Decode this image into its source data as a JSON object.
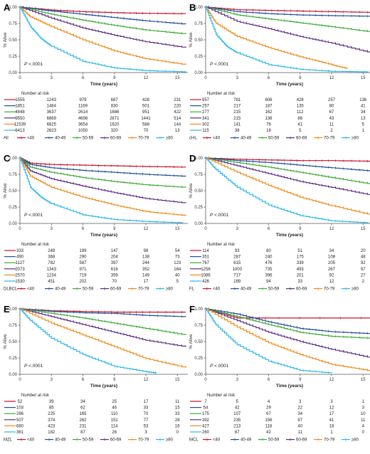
{
  "figure": {
    "time_label": "Time (years)",
    "y_label": "% Alive",
    "risk_title": "Number at risk",
    "p_prefix": "P",
    "p_value": " <.0001",
    "colors": [
      "#c8102e",
      "#1f4e9a",
      "#3aaa35",
      "#5b2a86",
      "#ef8a17",
      "#2ab7e8"
    ]
  },
  "chart_data": [
    {
      "panel": "A",
      "type": "line",
      "disease": "All",
      "x_ticks": [
        0,
        3,
        6,
        9,
        12,
        15
      ],
      "y_ticks": [
        "0.00",
        "0.25",
        "0.50",
        "0.75",
        "1.00"
      ],
      "xlim": [
        0,
        16
      ],
      "ylim": [
        0,
        1
      ],
      "grid": false,
      "legend": "bottom",
      "series": [
        {
          "name": "<40",
          "x": [
            0,
            3,
            6,
            9,
            12,
            15.8
          ],
          "y": [
            1,
            0.955,
            0.93,
            0.915,
            0.905,
            0.9
          ]
        },
        {
          "name": "40-49",
          "x": [
            0,
            3,
            6,
            9,
            12,
            15.8
          ],
          "y": [
            1,
            0.94,
            0.89,
            0.84,
            0.79,
            0.74
          ]
        },
        {
          "name": "50-59",
          "x": [
            0,
            3,
            6,
            9,
            12,
            15.8
          ],
          "y": [
            1,
            0.89,
            0.8,
            0.72,
            0.65,
            0.59
          ]
        },
        {
          "name": "60-69",
          "x": [
            0,
            3,
            6,
            9,
            12,
            15.8
          ],
          "y": [
            1,
            0.83,
            0.68,
            0.57,
            0.47,
            0.38
          ]
        },
        {
          "name": "70-79",
          "x": [
            0,
            1,
            3,
            6,
            9,
            12,
            15.8
          ],
          "y": [
            1,
            0.85,
            0.7,
            0.5,
            0.33,
            0.21,
            0.12
          ]
        },
        {
          "name": "≥80",
          "x": [
            0,
            1,
            2,
            3,
            6,
            9,
            12,
            15.8
          ],
          "y": [
            1,
            0.7,
            0.52,
            0.4,
            0.17,
            0.07,
            0.03,
            0.01
          ]
        }
      ],
      "risk_rows": [
        [
          "1555",
          "1243",
          "979",
          "687",
          "428",
          "231"
        ],
        [
          "1851",
          "1484",
          "1169",
          "830",
          "501",
          "220"
        ],
        [
          "4848",
          "3637",
          "2614",
          "1686",
          "951",
          "422"
        ],
        [
          "9550",
          "6869",
          "4698",
          "2871",
          "1441",
          "514"
        ],
        [
          "11539",
          "6825",
          "3654",
          "1620",
          "588",
          "144"
        ],
        [
          "6413",
          "2623",
          "1050",
          "320",
          "70",
          "13"
        ]
      ]
    },
    {
      "panel": "B",
      "type": "line",
      "disease": "cHL",
      "x_ticks": [
        0,
        3,
        6,
        9,
        12,
        15
      ],
      "y_ticks": [
        "0.00",
        "0.25",
        "0.50",
        "0.75",
        "1.00"
      ],
      "xlim": [
        0,
        16
      ],
      "ylim": [
        0,
        1
      ],
      "grid": false,
      "legend": "bottom",
      "series": [
        {
          "name": "<40",
          "x": [
            0,
            3,
            6,
            9,
            12,
            15.8
          ],
          "y": [
            1,
            0.96,
            0.95,
            0.94,
            0.93,
            0.92
          ]
        },
        {
          "name": "40-49",
          "x": [
            0,
            3,
            6,
            9,
            12,
            15.8
          ],
          "y": [
            1,
            0.93,
            0.9,
            0.88,
            0.87,
            0.86
          ]
        },
        {
          "name": "50-59",
          "x": [
            0,
            3,
            6,
            9,
            12,
            15.8
          ],
          "y": [
            1,
            0.88,
            0.82,
            0.76,
            0.7,
            0.62
          ]
        },
        {
          "name": "60-69",
          "x": [
            0,
            3,
            6,
            9,
            12,
            15.8
          ],
          "y": [
            1,
            0.78,
            0.67,
            0.55,
            0.45,
            0.3
          ]
        },
        {
          "name": "70-79",
          "x": [
            0,
            1,
            3,
            6,
            9,
            12,
            13.5
          ],
          "y": [
            1,
            0.75,
            0.55,
            0.38,
            0.24,
            0.12,
            0.06
          ]
        },
        {
          "name": "≥80",
          "x": [
            0,
            1,
            2,
            3,
            6,
            9,
            12,
            15.5
          ],
          "y": [
            1,
            0.58,
            0.4,
            0.3,
            0.12,
            0.05,
            0.02,
            0.01
          ]
        }
      ],
      "risk_rows": [
        [
          "957",
          "781",
          "606",
          "428",
          "257",
          "136"
        ],
        [
          "257",
          "217",
          "187",
          "135",
          "80",
          "41"
        ],
        [
          "277",
          "215",
          "162",
          "112",
          "67",
          "34"
        ],
        [
          "341",
          "215",
          "138",
          "88",
          "43",
          "13"
        ],
        [
          "302",
          "141",
          "76",
          "41",
          "11",
          "5"
        ],
        [
          "115",
          "38",
          "18",
          "5",
          "2",
          "1"
        ]
      ]
    },
    {
      "panel": "C",
      "type": "line",
      "disease": "DLBCL",
      "x_ticks": [
        0,
        3,
        6,
        9,
        12,
        15
      ],
      "y_ticks": [
        "0.00",
        "0.25",
        "0.50",
        "0.75",
        "1.00"
      ],
      "xlim": [
        0,
        16
      ],
      "ylim": [
        0,
        1
      ],
      "grid": false,
      "legend": "bottom",
      "series": [
        {
          "name": "<40",
          "x": [
            0,
            1,
            3,
            6,
            9,
            12,
            15.8
          ],
          "y": [
            1,
            0.92,
            0.9,
            0.89,
            0.88,
            0.87,
            0.86
          ]
        },
        {
          "name": "40-49",
          "x": [
            0,
            1,
            3,
            6,
            9,
            12,
            15.8
          ],
          "y": [
            1,
            0.9,
            0.85,
            0.81,
            0.78,
            0.75,
            0.72
          ]
        },
        {
          "name": "50-59",
          "x": [
            0,
            1,
            3,
            6,
            9,
            12,
            15.8
          ],
          "y": [
            1,
            0.86,
            0.78,
            0.7,
            0.64,
            0.59,
            0.55
          ]
        },
        {
          "name": "60-69",
          "x": [
            0,
            1,
            3,
            6,
            9,
            12,
            15.8
          ],
          "y": [
            1,
            0.8,
            0.68,
            0.57,
            0.47,
            0.38,
            0.31
          ]
        },
        {
          "name": "70-79",
          "x": [
            0,
            1,
            3,
            6,
            9,
            12,
            15.8
          ],
          "y": [
            1,
            0.72,
            0.55,
            0.4,
            0.28,
            0.18,
            0.12
          ]
        },
        {
          "name": "≥80",
          "x": [
            0,
            1,
            2,
            3,
            6,
            9,
            12,
            15.5
          ],
          "y": [
            1,
            0.55,
            0.4,
            0.3,
            0.13,
            0.06,
            0.03,
            0.01
          ]
        }
      ],
      "risk_rows": [
        [
          "333",
          "249",
          "199",
          "147",
          "98",
          "54"
        ],
        [
          "490",
          "368",
          "290",
          "204",
          "138",
          "73"
        ],
        [
          "1127",
          "782",
          "587",
          "397",
          "244",
          "123"
        ],
        [
          "2073",
          "1343",
          "971",
          "616",
          "352",
          "164"
        ],
        [
          "2570",
          "1234",
          "719",
          "359",
          "149",
          "40"
        ],
        [
          "1530",
          "451",
          "202",
          "70",
          "17",
          "5"
        ]
      ]
    },
    {
      "panel": "D",
      "type": "line",
      "disease": "FL",
      "x_ticks": [
        0,
        3,
        6,
        9,
        12,
        15
      ],
      "y_ticks": [
        "0.00",
        "0.25",
        "0.50",
        "0.75",
        "1.00"
      ],
      "xlim": [
        0,
        16
      ],
      "ylim": [
        0,
        1
      ],
      "grid": false,
      "legend": "bottom",
      "series": [
        {
          "name": "<40",
          "x": [
            0,
            3,
            6,
            9,
            12,
            15.8
          ],
          "y": [
            1,
            0.98,
            0.97,
            0.96,
            0.96,
            0.95
          ]
        },
        {
          "name": "40-49",
          "x": [
            0,
            3,
            6,
            9,
            12,
            15.8
          ],
          "y": [
            1,
            0.96,
            0.93,
            0.89,
            0.85,
            0.8
          ]
        },
        {
          "name": "50-59",
          "x": [
            0,
            3,
            6,
            9,
            12,
            15.8
          ],
          "y": [
            1,
            0.93,
            0.86,
            0.78,
            0.7,
            0.6
          ]
        },
        {
          "name": "60-69",
          "x": [
            0,
            3,
            6,
            9,
            12,
            15.8
          ],
          "y": [
            1,
            0.88,
            0.76,
            0.64,
            0.55,
            0.43
          ]
        },
        {
          "name": "70-79",
          "x": [
            0,
            3,
            6,
            9,
            12,
            15.8
          ],
          "y": [
            1,
            0.78,
            0.58,
            0.4,
            0.27,
            0.13
          ]
        },
        {
          "name": "≥80",
          "x": [
            0,
            1,
            3,
            6,
            9,
            12,
            15.5
          ],
          "y": [
            1,
            0.82,
            0.55,
            0.28,
            0.12,
            0.04,
            0.01
          ]
        }
      ],
      "risk_rows": [
        [
          "114",
          "93",
          "80",
          "51",
          "34",
          "20"
        ],
        [
          "351",
          "287",
          "240",
          "175",
          "108",
          "48"
        ],
        [
          "767",
          "615",
          "476",
          "339",
          "205",
          "92"
        ],
        [
          "1256",
          "1000",
          "735",
          "493",
          "267",
          "97"
        ],
        [
          "1086",
          "717",
          "396",
          "201",
          "92",
          "27"
        ],
        [
          "426",
          "189",
          "94",
          "33",
          "12",
          "2"
        ]
      ]
    },
    {
      "panel": "E",
      "type": "line",
      "disease": "MZL",
      "x_ticks": [
        0,
        3,
        6,
        9,
        12,
        15
      ],
      "y_ticks": [
        "0.00",
        "0.25",
        "0.50",
        "0.75",
        "1.00"
      ],
      "xlim": [
        0,
        16
      ],
      "ylim": [
        0,
        1
      ],
      "grid": false,
      "legend": "bottom",
      "series": [
        {
          "name": "<40",
          "x": [
            0,
            3,
            6,
            9,
            12,
            15.8
          ],
          "y": [
            1,
            0.97,
            0.96,
            0.95,
            0.95,
            0.95
          ]
        },
        {
          "name": "40-49",
          "x": [
            0,
            3,
            6,
            9,
            12,
            15.8
          ],
          "y": [
            1,
            0.96,
            0.94,
            0.93,
            0.9,
            0.88
          ]
        },
        {
          "name": "50-59",
          "x": [
            0,
            3,
            6,
            9,
            12,
            15.8
          ],
          "y": [
            1,
            0.93,
            0.86,
            0.78,
            0.7,
            0.6
          ]
        },
        {
          "name": "60-69",
          "x": [
            0,
            3,
            6,
            9,
            12,
            15.8
          ],
          "y": [
            1,
            0.88,
            0.76,
            0.64,
            0.52,
            0.42
          ]
        },
        {
          "name": "70-79",
          "x": [
            0,
            3,
            6,
            9,
            12,
            15.8
          ],
          "y": [
            1,
            0.78,
            0.6,
            0.42,
            0.24,
            0.1
          ]
        },
        {
          "name": "≥80",
          "x": [
            0,
            1,
            3,
            6,
            9,
            12,
            13
          ],
          "y": [
            1,
            0.82,
            0.55,
            0.3,
            0.12,
            0.04,
            0.02
          ]
        }
      ],
      "risk_rows": [
        [
          "52",
          "39",
          "34",
          "25",
          "17",
          "11"
        ],
        [
          "103",
          "85",
          "62",
          "46",
          "33",
          "15"
        ],
        [
          "286",
          "225",
          "165",
          "110",
          "70",
          "33"
        ],
        [
          "507",
          "374",
          "262",
          "151",
          "77",
          "28"
        ],
        [
          "680",
          "423",
          "231",
          "114",
          "53",
          "16"
        ],
        [
          "361",
          "182",
          "87",
          "26",
          "3",
          "0"
        ]
      ]
    },
    {
      "panel": "F",
      "type": "line",
      "disease": "MCL",
      "x_ticks": [
        0,
        3,
        6,
        9,
        12,
        15
      ],
      "y_ticks": [
        "0.00",
        "0.25",
        "0.50",
        "0.75",
        "1.00"
      ],
      "xlim": [
        0,
        16
      ],
      "ylim": [
        0,
        1
      ],
      "grid": false,
      "legend": "bottom",
      "series": [
        {
          "name": "<40",
          "x": [
            0,
            3,
            6,
            15.8
          ],
          "y": [
            1,
            0.86,
            0.86,
            0.86
          ]
        },
        {
          "name": "40-49",
          "x": [
            0,
            3,
            6,
            9,
            12,
            15.8
          ],
          "y": [
            1,
            0.92,
            0.8,
            0.7,
            0.65,
            0.62
          ]
        },
        {
          "name": "50-59",
          "x": [
            0,
            3,
            6,
            9,
            12,
            15.8
          ],
          "y": [
            1,
            0.88,
            0.76,
            0.64,
            0.58,
            0.55
          ]
        },
        {
          "name": "60-69",
          "x": [
            0,
            3,
            6,
            9,
            12,
            15.8
          ],
          "y": [
            1,
            0.82,
            0.64,
            0.5,
            0.38,
            0.25
          ]
        },
        {
          "name": "70-79",
          "x": [
            0,
            3,
            6,
            9,
            12,
            15.8
          ],
          "y": [
            1,
            0.72,
            0.48,
            0.3,
            0.15,
            0.05
          ]
        },
        {
          "name": "≥80",
          "x": [
            0,
            1,
            3,
            6,
            9,
            12
          ],
          "y": [
            1,
            0.75,
            0.45,
            0.2,
            0.06,
            0.02
          ]
        }
      ],
      "risk_rows": [
        [
          "7",
          "5",
          "4",
          "3",
          "3",
          "1"
        ],
        [
          "54",
          "42",
          "29",
          "22",
          "12",
          "3"
        ],
        [
          "175",
          "107",
          "67",
          "34",
          "17",
          "10"
        ],
        [
          "392",
          "235",
          "156",
          "97",
          "41",
          "11"
        ],
        [
          "427",
          "213",
          "118",
          "40",
          "18",
          "4"
        ],
        [
          "260",
          "87",
          "42",
          "11",
          "1",
          "0"
        ]
      ]
    }
  ]
}
